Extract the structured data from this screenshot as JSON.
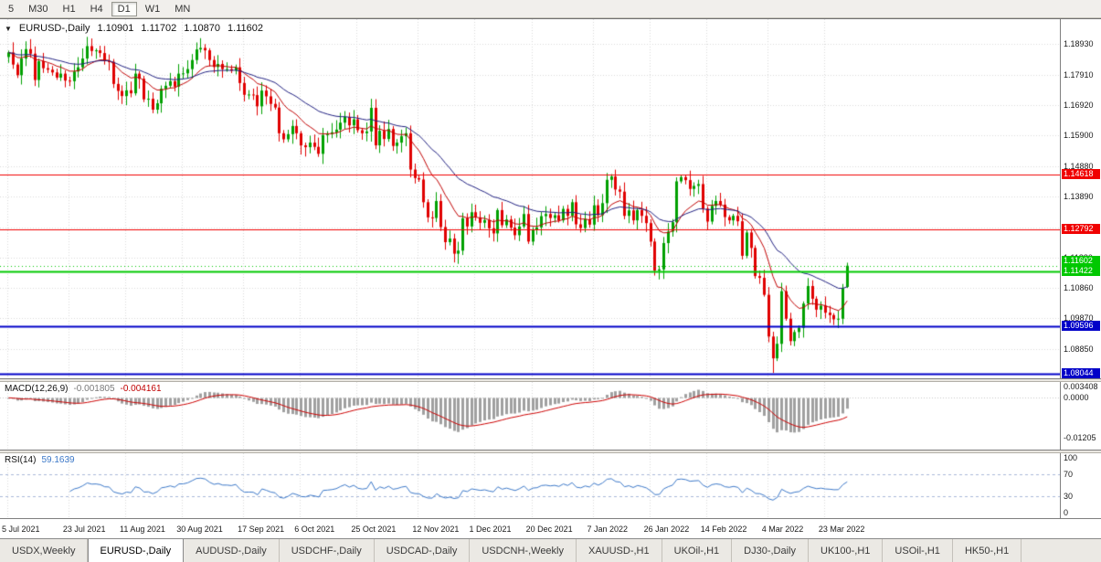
{
  "toolbar": {
    "timeframes": [
      {
        "label": "5",
        "active": false
      },
      {
        "label": "M30",
        "active": false
      },
      {
        "label": "H1",
        "active": false
      },
      {
        "label": "H4",
        "active": false
      },
      {
        "label": "D1",
        "active": true
      },
      {
        "label": "W1",
        "active": false
      },
      {
        "label": "MN",
        "active": false
      }
    ]
  },
  "chart": {
    "collapse_icon": "▼",
    "title": "EURUSD-,Daily",
    "quote": {
      "open": "1.10901",
      "high": "1.11702",
      "low": "1.10870",
      "close": "1.11602"
    }
  },
  "macd_panel": {
    "label": "MACD(12,26,9)",
    "main": "-0.001805",
    "signal": "-0.004161"
  },
  "rsi_panel": {
    "label": "RSI(14)",
    "value": "59.1639"
  },
  "tabs": [
    {
      "label": "USDX,Weekly",
      "active": false
    },
    {
      "label": "EURUSD-,Daily",
      "active": true
    },
    {
      "label": "AUDUSD-,Daily",
      "active": false
    },
    {
      "label": "USDCHF-,Daily",
      "active": false
    },
    {
      "label": "USDCAD-,Daily",
      "active": false
    },
    {
      "label": "USDCNH-,Weekly",
      "active": false
    },
    {
      "label": "XAUUSD-,H1",
      "active": false
    },
    {
      "label": "UKOil-,H1",
      "active": false
    },
    {
      "label": "DJ30-,Daily",
      "active": false
    },
    {
      "label": "UK100-,H1",
      "active": false
    },
    {
      "label": "USOil-,H1",
      "active": false
    },
    {
      "label": "HK50-,H1",
      "active": false
    }
  ],
  "chart_data": {
    "type": "candlestick",
    "symbol": "EURUSD-",
    "timeframe": "Daily",
    "last_quote": {
      "open": 1.10901,
      "high": 1.11702,
      "low": 1.1087,
      "close": 1.11602
    },
    "price_range": [
      1.0788,
      1.1975
    ],
    "low_extreme": 1.0806,
    "y_ticks": [
      "1.18930",
      "1.17910",
      "1.16920",
      "1.15900",
      "1.14880",
      "1.13890",
      "1.12870",
      "1.11880",
      "1.10860",
      "1.09870",
      "1.08850"
    ],
    "x_labels": [
      {
        "text": "5 Jul 2021",
        "bar": 0
      },
      {
        "text": "23 Jul 2021",
        "bar": 14
      },
      {
        "text": "11 Aug 2021",
        "bar": 27
      },
      {
        "text": "30 Aug 2021",
        "bar": 40
      },
      {
        "text": "17 Sep 2021",
        "bar": 54
      },
      {
        "text": "6 Oct 2021",
        "bar": 67
      },
      {
        "text": "25 Oct 2021",
        "bar": 80
      },
      {
        "text": "12 Nov 2021",
        "bar": 94
      },
      {
        "text": "1 Dec 2021",
        "bar": 107
      },
      {
        "text": "20 Dec 2021",
        "bar": 120
      },
      {
        "text": "7 Jan 2022",
        "bar": 134
      },
      {
        "text": "26 Jan 2022",
        "bar": 147
      },
      {
        "text": "14 Feb 2022",
        "bar": 160
      },
      {
        "text": "4 Mar 2022",
        "bar": 174
      },
      {
        "text": "23 Mar 2022",
        "bar": 187
      }
    ],
    "closes": [
      1.1865,
      1.1825,
      1.179,
      1.1845,
      1.1876,
      1.1861,
      1.1774,
      1.1836,
      1.1813,
      1.1808,
      1.1799,
      1.1782,
      1.1795,
      1.1772,
      1.177,
      1.1802,
      1.1816,
      1.1845,
      1.1886,
      1.187,
      1.1872,
      1.1863,
      1.1836,
      1.1834,
      1.1761,
      1.1738,
      1.1721,
      1.174,
      1.173,
      1.1795,
      1.1778,
      1.171,
      1.1712,
      1.1676,
      1.1697,
      1.1745,
      1.1755,
      1.177,
      1.1752,
      1.1795,
      1.1796,
      1.181,
      1.184,
      1.1875,
      1.188,
      1.1872,
      1.184,
      1.1817,
      1.1827,
      1.181,
      1.181,
      1.1805,
      1.1816,
      1.1764,
      1.1725,
      1.1726,
      1.1724,
      1.1687,
      1.1739,
      1.172,
      1.1695,
      1.1683,
      1.1598,
      1.1578,
      1.1595,
      1.1622,
      1.1598,
      1.1558,
      1.1552,
      1.1567,
      1.1553,
      1.153,
      1.1592,
      1.1596,
      1.1601,
      1.161,
      1.1633,
      1.1652,
      1.1624,
      1.1644,
      1.1608,
      1.1598,
      1.1604,
      1.1682,
      1.1558,
      1.1606,
      1.1579,
      1.1612,
      1.1556,
      1.1567,
      1.1588,
      1.1598,
      1.1478,
      1.145,
      1.1445,
      1.137,
      1.132,
      1.1318,
      1.1374,
      1.1288,
      1.1238,
      1.125,
      1.12,
      1.121,
      1.1317,
      1.129,
      1.1337,
      1.132,
      1.1302,
      1.1311,
      1.1284,
      1.1267,
      1.1344,
      1.1294,
      1.1313,
      1.1286,
      1.1261,
      1.129,
      1.1331,
      1.124,
      1.128,
      1.1287,
      1.1324,
      1.1331,
      1.1318,
      1.1327,
      1.131,
      1.1348,
      1.1325,
      1.137,
      1.1297,
      1.1285,
      1.1314,
      1.1296,
      1.136,
      1.1327,
      1.1367,
      1.1444,
      1.1455,
      1.1412,
      1.1405,
      1.1325,
      1.1343,
      1.131,
      1.1344,
      1.1325,
      1.1301,
      1.124,
      1.1144,
      1.1148,
      1.1235,
      1.1273,
      1.1304,
      1.1439,
      1.1453,
      1.1443,
      1.1414,
      1.1424,
      1.143,
      1.1349,
      1.1306,
      1.1358,
      1.1374,
      1.1362,
      1.1321,
      1.131,
      1.1325,
      1.1307,
      1.1193,
      1.127,
      1.1219,
      1.1126,
      1.112,
      1.1064,
      1.0926,
      1.0854,
      1.0902,
      1.1076,
      1.0985,
      1.0911,
      1.0941,
      1.0955,
      1.1035,
      1.1093,
      1.1051,
      1.1015,
      1.1028,
      1.1005,
      1.0997,
      1.0983,
      1.0985,
      1.1086,
      1.116
    ],
    "horizontal_lines": [
      {
        "price": 1.14618,
        "label": "1.14618",
        "color": "#f00000",
        "width": 1
      },
      {
        "price": 1.12792,
        "label": "1.12792",
        "color": "#f00000",
        "width": 1
      },
      {
        "price": 1.11422,
        "label": "1.11422",
        "color": "#00c800",
        "width": 2
      },
      {
        "price": 1.09596,
        "label": "1.09596",
        "color": "#0000c8",
        "width": 2
      },
      {
        "price": 1.08044,
        "label": "1.08044",
        "color": "#0000c8",
        "width": 2
      }
    ],
    "current_price": {
      "price": 1.11602,
      "label": "1.11602"
    },
    "indicators": {
      "macd": {
        "params": "12,26,9",
        "main": -0.001805,
        "signal": -0.004161,
        "y_ticks": [
          "0.003408",
          "0.0000",
          "-0.01205"
        ],
        "y_range": [
          -0.0157,
          0.0048
        ]
      },
      "rsi": {
        "params": "14",
        "value": 59.1639,
        "levels": [
          70,
          30
        ],
        "y_ticks": [
          "100",
          "70",
          "30",
          "0"
        ],
        "y_range": [
          0,
          100
        ]
      }
    },
    "colors": {
      "up": "#00a000",
      "down": "#e00000",
      "ma_fast": "#c00000",
      "ma_slow": "#202080",
      "macd_hist": "#a0a0a0",
      "macd_signal": "#cc0000",
      "rsi": "#3c78c8",
      "rsi_levels": "#a8b8d8",
      "line_green": "#00c800",
      "grid": "#d9d9d9"
    }
  }
}
